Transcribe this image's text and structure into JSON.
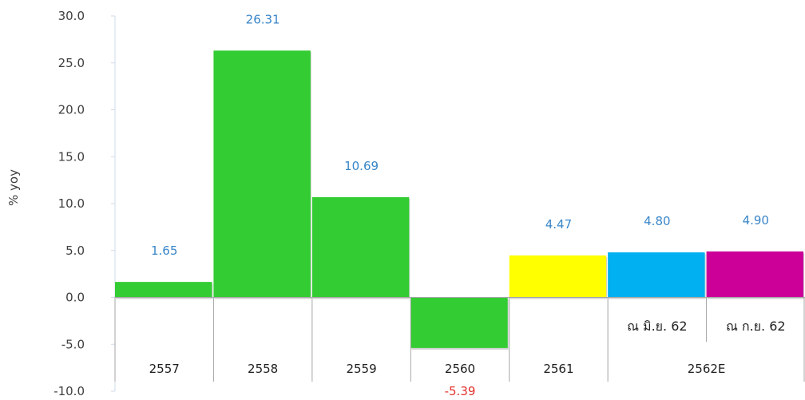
{
  "chart_data": {
    "type": "bar",
    "ylabel": "% yoy",
    "ylim": [
      -10,
      30
    ],
    "yticks": [
      "30.0",
      "25.0",
      "20.0",
      "15.0",
      "10.0",
      "5.0",
      "0.0",
      "-5.0",
      "-10.0"
    ],
    "bars": [
      {
        "label": "1.65",
        "value": 1.65,
        "color": "#33cc33"
      },
      {
        "label": "26.31",
        "value": 26.31,
        "color": "#33cc33"
      },
      {
        "label": "10.69",
        "value": 10.69,
        "color": "#33cc33"
      },
      {
        "label": "-5.39",
        "value": -5.39,
        "color": "#33cc33"
      },
      {
        "label": "4.47",
        "value": 4.47,
        "color": "#ffff00"
      },
      {
        "label": "4.80",
        "value": 4.8,
        "color": "#00b0f0"
      },
      {
        "label": "4.90",
        "value": 4.9,
        "color": "#cc0099"
      }
    ],
    "categories": [
      "2557",
      "2558",
      "2559",
      "2560",
      "2561",
      "2562E"
    ],
    "sub_labels": [
      "ณ มิ.ย. 62",
      "ณ ก.ย. 62"
    ],
    "colors": {
      "positive_label": "#3a86c8",
      "negative_label": "#e0312b",
      "axis": "#a6a6a6"
    },
    "grid": false
  }
}
